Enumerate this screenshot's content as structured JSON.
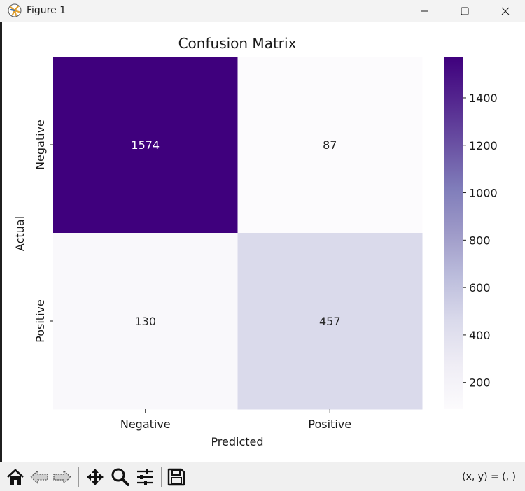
{
  "window": {
    "title": "Figure 1",
    "icons": {
      "app": "matplotlib-icon",
      "minimize": "minimize-icon",
      "maximize": "maximize-icon",
      "close": "close-icon"
    }
  },
  "toolbar": {
    "buttons": [
      {
        "name": "home",
        "icon": "home-icon"
      },
      {
        "name": "back",
        "icon": "arrow-left-icon"
      },
      {
        "name": "forward",
        "icon": "arrow-right-icon"
      },
      {
        "name": "pan",
        "icon": "move-icon"
      },
      {
        "name": "zoom",
        "icon": "magnifier-icon"
      },
      {
        "name": "configure-subplots",
        "icon": "sliders-icon"
      },
      {
        "name": "save",
        "icon": "floppy-disk-icon"
      }
    ],
    "coords_text": "(x, y) = (, )"
  },
  "chart_data": {
    "type": "heatmap",
    "title": "Confusion Matrix",
    "xlabel": "Predicted",
    "ylabel": "Actual",
    "x_categories": [
      "Negative",
      "Positive"
    ],
    "y_categories": [
      "Negative",
      "Positive"
    ],
    "values": [
      [
        1574,
        87
      ],
      [
        130,
        457
      ]
    ],
    "colormap": "Purples",
    "colormap_stops": [
      "#fcfbfd",
      "#efedf5",
      "#dadaeb",
      "#bcbddc",
      "#9e9ac8",
      "#807dba",
      "#6a51a3",
      "#54278f",
      "#3f007d"
    ],
    "vmin": 87,
    "vmax": 1574,
    "annotation_color_dark": "#262626",
    "annotation_color_light": "#ffffff",
    "colorbar": {
      "ticks": [
        200,
        400,
        600,
        800,
        1000,
        1200,
        1400
      ]
    }
  }
}
